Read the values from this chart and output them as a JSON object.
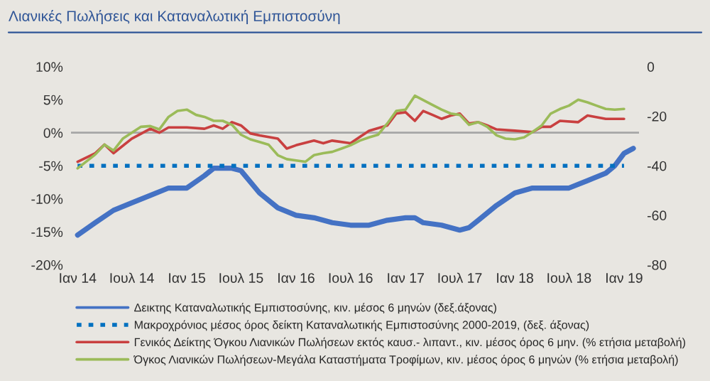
{
  "chart_data": {
    "type": "line",
    "title": "Λιανικές Πωλήσεις και Καταναλωτική Εμπιστοσύνη",
    "series": [
      {
        "name": "Δεικτης Καταναλωτικής Εμπιστοσύνης, κιν. μέσος 6 μηνών (δεξ.άξονας)",
        "color": "#4472c4",
        "axis": "y2",
        "line_style": "solid",
        "x": [
          "2014-01",
          "2014-03",
          "2014-05",
          "2014-07",
          "2014-09",
          "2014-11",
          "2015-01",
          "2015-03",
          "2015-04",
          "2015-06",
          "2015-07",
          "2015-09",
          "2015-11",
          "2016-01",
          "2016-03",
          "2016-05",
          "2016-07",
          "2016-09",
          "2016-11",
          "2017-01",
          "2017-02",
          "2017-03",
          "2017-05",
          "2017-07",
          "2017-08",
          "2017-09",
          "2017-11",
          "2018-01",
          "2018-03",
          "2018-05",
          "2018-07",
          "2018-09",
          "2018-11",
          "2018-12",
          "2019-01",
          "2019-02"
        ],
        "values": [
          -68,
          -63,
          -58,
          -55,
          -52,
          -49,
          -49,
          -44,
          -41,
          -41,
          -42,
          -51,
          -57,
          -60,
          -61,
          -63,
          -64,
          -64,
          -62,
          -61,
          -61,
          -63,
          -64,
          -66,
          -65,
          -62,
          -56,
          -51,
          -49,
          -49,
          -49,
          -46,
          -43,
          -40,
          -35,
          -33
        ]
      },
      {
        "name": "Μακροχρόνιος μέσος όρος δείκτη Καταναλωτικής Εμπιστοσύνης 2000-2019, (δεξ. άξονας)",
        "color": "#0070c0",
        "axis": "y2",
        "line_style": "dotted",
        "x": [
          "2014-01",
          "2019-01"
        ],
        "values": [
          -40,
          -40
        ]
      },
      {
        "name": "Γενικός Δείκτης Όγκου Λιανικών Πωλήσεων εκτός καυσ.- λιπαντ., κιν. μέσος όρος 6 μην. (% ετήσια μεταβολή)",
        "color": "#c94040",
        "line_style": "solid",
        "x": [
          "2014-01",
          "2014-03",
          "2014-04",
          "2014-05",
          "2014-07",
          "2014-09",
          "2014-10",
          "2014-11",
          "2015-01",
          "2015-03",
          "2015-04",
          "2015-05",
          "2015-06",
          "2015-07",
          "2015-08",
          "2015-09",
          "2015-11",
          "2015-12",
          "2016-01",
          "2016-03",
          "2016-04",
          "2016-05",
          "2016-07",
          "2016-09",
          "2016-11",
          "2016-12",
          "2017-01",
          "2017-02",
          "2017-03",
          "2017-04",
          "2017-05",
          "2017-06",
          "2017-07",
          "2017-08",
          "2017-09",
          "2017-10",
          "2017-11",
          "2018-01",
          "2018-03",
          "2018-04",
          "2018-05",
          "2018-06",
          "2018-08",
          "2018-09",
          "2018-11",
          "2019-01"
        ],
        "values": [
          -4.4,
          -3.1,
          -1.8,
          -3.1,
          -0.9,
          0.6,
          0,
          0.8,
          0.8,
          0.6,
          1.1,
          0.6,
          1.6,
          1.1,
          -0.1,
          -0.4,
          -0.9,
          -2.4,
          -1.9,
          -1.2,
          -1.6,
          -1.2,
          -1.6,
          0.3,
          1.1,
          2.9,
          3.1,
          1.8,
          3.3,
          2.7,
          2.1,
          2.6,
          2.9,
          1.4,
          1.6,
          1.1,
          0.5,
          0.3,
          0.1,
          0.9,
          0.9,
          1.8,
          1.6,
          2.6,
          2.1,
          2.1
        ]
      },
      {
        "name": "Όγκος Λιανικών Πωλήσεων-Μεγάλα Καταστήματα Τροφίμων, κιν. μέσος όρος 6 μηνών (% ετήσια μεταβολή)",
        "color": "#9bbb59",
        "line_style": "solid",
        "x": [
          "2014-01",
          "2014-03",
          "2014-04",
          "2014-05",
          "2014-06",
          "2014-08",
          "2014-09",
          "2014-10",
          "2014-11",
          "2014-12",
          "2015-01",
          "2015-02",
          "2015-03",
          "2015-04",
          "2015-05",
          "2015-06",
          "2015-07",
          "2015-08",
          "2015-09",
          "2015-10",
          "2015-11",
          "2015-12",
          "2016-01",
          "2016-02",
          "2016-03",
          "2016-04",
          "2016-05",
          "2016-06",
          "2016-07",
          "2016-08",
          "2016-09",
          "2016-10",
          "2016-11",
          "2016-12",
          "2017-01",
          "2017-02",
          "2017-04",
          "2017-05",
          "2017-06",
          "2017-07",
          "2017-08",
          "2017-09",
          "2017-10",
          "2017-11",
          "2017-12",
          "2018-01",
          "2018-02",
          "2018-03",
          "2018-04",
          "2018-05",
          "2018-06",
          "2018-07",
          "2018-08",
          "2018-09",
          "2018-10",
          "2018-11",
          "2018-12",
          "2019-01"
        ],
        "values": [
          -5.4,
          -3.3,
          -1.8,
          -2.7,
          -0.9,
          0.9,
          1.0,
          0.5,
          2.4,
          3.3,
          3.5,
          2.7,
          2.4,
          1.8,
          1.8,
          1.2,
          -0.3,
          -1.0,
          -1.4,
          -1.8,
          -3.4,
          -4.0,
          -4.2,
          -4.4,
          -3.4,
          -3.1,
          -2.9,
          -2.4,
          -1.9,
          -1.2,
          -0.7,
          -0.3,
          1.4,
          3.3,
          3.5,
          5.6,
          4.2,
          3.5,
          2.9,
          2.7,
          1.2,
          1.6,
          0.9,
          -0.4,
          -0.9,
          -1.0,
          -0.7,
          0.1,
          1.1,
          2.9,
          3.6,
          4.1,
          5.0,
          4.6,
          4.1,
          3.6,
          3.5,
          3.6
        ]
      }
    ],
    "xlim": [
      "2013-12-10",
      "2019-02-20"
    ],
    "xticks": [
      {
        "value": "2014-01",
        "label": "Ιαν 14"
      },
      {
        "value": "2014-07",
        "label": "Ιουλ 14"
      },
      {
        "value": "2015-01",
        "label": "Ιαν 15"
      },
      {
        "value": "2015-07",
        "label": "Ιουλ 15"
      },
      {
        "value": "2016-01",
        "label": "Ιαν 16"
      },
      {
        "value": "2016-07",
        "label": "Ιουλ 16"
      },
      {
        "value": "2017-01",
        "label": "Ιαν 17"
      },
      {
        "value": "2017-07",
        "label": "Ιουλ 17"
      },
      {
        "value": "2018-01",
        "label": "Ιαν 18"
      },
      {
        "value": "2018-07",
        "label": "Ιουλ 18"
      },
      {
        "value": "2019-01",
        "label": "Ιαν 19"
      }
    ],
    "ylim": [
      -20,
      10
    ],
    "yticks": [
      {
        "value": -20,
        "label": "-20%"
      },
      {
        "value": -15,
        "label": "-15%"
      },
      {
        "value": -10,
        "label": "-10%"
      },
      {
        "value": -5,
        "label": "-5%"
      },
      {
        "value": 0,
        "label": "0%"
      },
      {
        "value": 5,
        "label": "5%"
      },
      {
        "value": 10,
        "label": "10%"
      }
    ],
    "y2lim": [
      -80,
      0
    ],
    "y2ticks": [
      -80,
      -60,
      -40,
      -20,
      0
    ],
    "ref_lines": [
      {
        "axis": "y",
        "value": 0,
        "color": "#a6a6a6"
      }
    ],
    "grid": false,
    "legend": "bottom"
  }
}
